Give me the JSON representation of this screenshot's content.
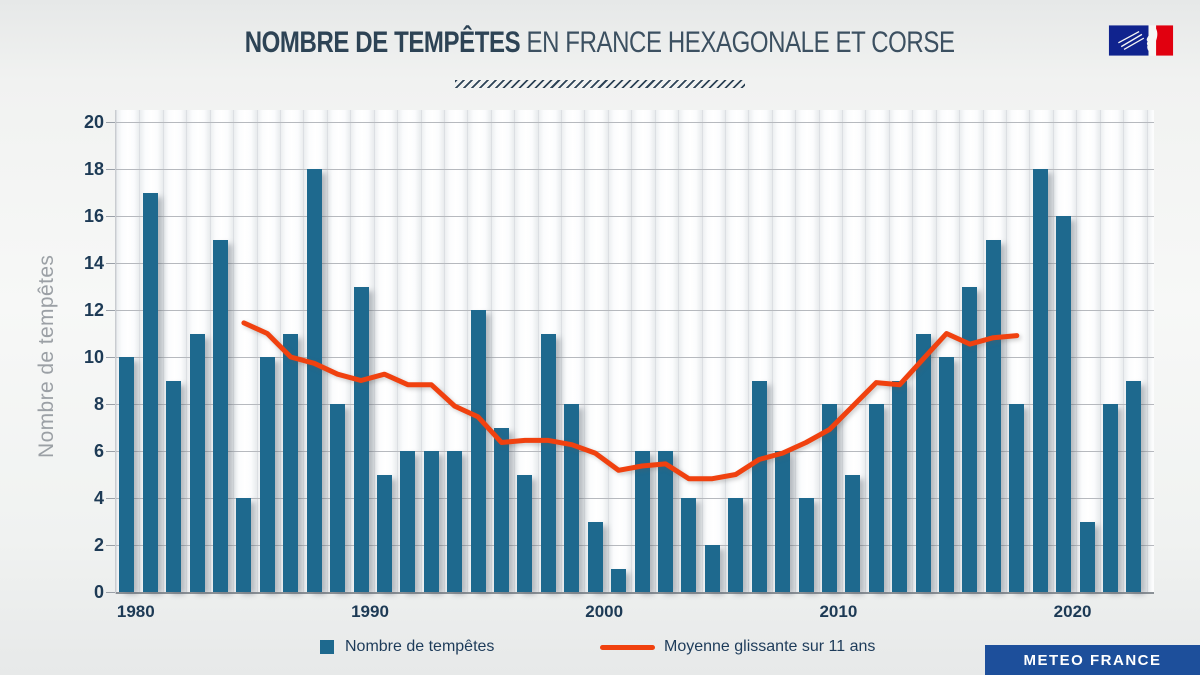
{
  "header": {
    "title_bold": "NOMBRE DE TEMPÊTES",
    "title_light": " EN FRANCE HEXAGONALE ET CORSE"
  },
  "logo": {
    "name": "republique-francaise-flag",
    "blue": "#10238e",
    "red": "#e1000f"
  },
  "legend": {
    "bars_label": "Nombre de tempêtes",
    "line_label": "Moyenne glissante sur 11 ans"
  },
  "footer": {
    "brand": "METEO FRANCE"
  },
  "colors": {
    "bar": "#1e698e",
    "line": "#f0410f",
    "text_dark": "#1d3a55",
    "axis_title_gray": "#9ba0a5",
    "badge_blue": "#1d4f9b"
  },
  "chart_data": {
    "type": "bar",
    "title": "Nombre de tempêtes en France hexagonale et Corse",
    "xlabel": "",
    "ylabel": "Nombre de tempêtes",
    "ylim": [
      0,
      20
    ],
    "grid": true,
    "legend_position": "bottom",
    "y_ticks": [
      0,
      2,
      4,
      6,
      8,
      10,
      12,
      14,
      16,
      18,
      20
    ],
    "x_ticks": [
      1980,
      1990,
      2000,
      2010,
      2020
    ],
    "categories": [
      1980,
      1981,
      1982,
      1983,
      1984,
      1985,
      1986,
      1987,
      1988,
      1989,
      1990,
      1991,
      1992,
      1993,
      1994,
      1995,
      1996,
      1997,
      1998,
      1999,
      2000,
      2001,
      2002,
      2003,
      2004,
      2005,
      2006,
      2007,
      2008,
      2009,
      2010,
      2011,
      2012,
      2013,
      2014,
      2015,
      2016,
      2017,
      2018,
      2019,
      2020,
      2021,
      2022,
      2023
    ],
    "series": [
      {
        "name": "Nombre de tempêtes",
        "type": "bar",
        "values": [
          10,
          17,
          9,
          11,
          15,
          4,
          10,
          11,
          18,
          8,
          13,
          5,
          6,
          6,
          6,
          12,
          7,
          5,
          11,
          8,
          3,
          1,
          6,
          6,
          4,
          2,
          4,
          9,
          6,
          4,
          8,
          5,
          8,
          9,
          11,
          10,
          13,
          15,
          8,
          18,
          16,
          3,
          8,
          9
        ]
      },
      {
        "name": "Moyenne glissante sur 11 ans",
        "type": "line",
        "x_start": 1985,
        "x_end": 2018,
        "values": [
          11.45,
          11.0,
          10.0,
          9.73,
          9.27,
          9.0,
          9.27,
          8.82,
          8.82,
          7.91,
          7.45,
          6.36,
          6.45,
          6.45,
          6.27,
          5.91,
          5.18,
          5.36,
          5.45,
          4.82,
          4.82,
          5.0,
          5.64,
          5.91,
          6.36,
          6.91,
          7.91,
          8.91,
          8.82,
          9.91,
          11.0,
          10.55,
          10.82,
          10.91
        ]
      }
    ]
  }
}
